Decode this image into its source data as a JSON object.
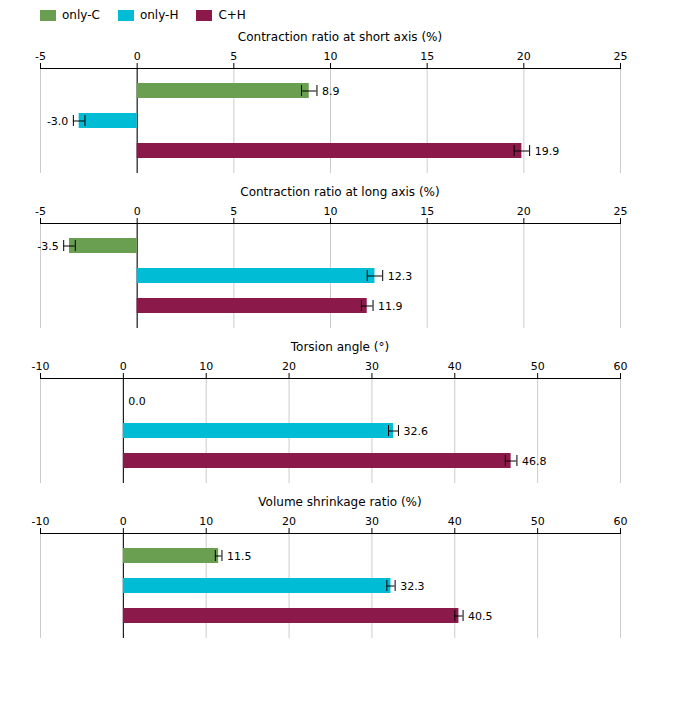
{
  "chart_data": [
    {
      "type": "bar",
      "orientation": "horizontal",
      "title": "Contraction ratio at short axis (%)",
      "categories": [
        "only-C",
        "only-H",
        "C+H"
      ],
      "values": [
        8.9,
        -3.0,
        19.9
      ],
      "value_labels": [
        "8.9",
        "-3.0",
        "19.9"
      ],
      "errors": [
        0.4,
        0.3,
        0.4
      ],
      "colors": [
        "#6a9e50",
        "#00bcd4",
        "#8b1a4a"
      ],
      "xlim": [
        -5,
        25
      ],
      "xticks": [
        -5,
        0,
        5,
        10,
        15,
        20,
        25
      ],
      "grid": true,
      "data_labels": true,
      "tick_labels": "x",
      "legend": "top"
    },
    {
      "type": "bar",
      "orientation": "horizontal",
      "title": "Contraction ratio at long axis (%)",
      "categories": [
        "only-C",
        "only-H",
        "C+H"
      ],
      "values": [
        -3.5,
        12.3,
        11.9
      ],
      "value_labels": [
        "-3.5",
        "12.3",
        "11.9"
      ],
      "errors": [
        0.3,
        0.4,
        0.3
      ],
      "colors": [
        "#6a9e50",
        "#00bcd4",
        "#8b1a4a"
      ],
      "xlim": [
        -5,
        25
      ],
      "xticks": [
        -5,
        0,
        5,
        10,
        15,
        20,
        25
      ],
      "grid": true,
      "data_labels": true,
      "tick_labels": "x"
    },
    {
      "type": "bar",
      "orientation": "horizontal",
      "title": "Torsion angle (°)",
      "categories": [
        "only-C",
        "only-H",
        "C+H"
      ],
      "values": [
        0.0,
        32.6,
        46.8
      ],
      "value_labels": [
        "0.0",
        "32.6",
        "46.8"
      ],
      "errors": [
        0.0,
        0.6,
        0.7
      ],
      "colors": [
        "#6a9e50",
        "#00bcd4",
        "#8b1a4a"
      ],
      "xlim": [
        -10,
        60
      ],
      "xticks": [
        -10,
        0,
        10,
        20,
        30,
        40,
        50,
        60
      ],
      "grid": true,
      "data_labels": true,
      "tick_labels": "x"
    },
    {
      "type": "bar",
      "orientation": "horizontal",
      "title": "Volume shrinkage ratio (%)",
      "categories": [
        "only-C",
        "only-H",
        "C+H"
      ],
      "values": [
        11.5,
        32.3,
        40.5
      ],
      "value_labels": [
        "11.5",
        "32.3",
        "40.5"
      ],
      "errors": [
        0.4,
        0.5,
        0.5
      ],
      "colors": [
        "#6a9e50",
        "#00bcd4",
        "#8b1a4a"
      ],
      "xlim": [
        -10,
        60
      ],
      "xticks": [
        -10,
        0,
        10,
        20,
        30,
        40,
        50,
        60
      ],
      "grid": true,
      "data_labels": true,
      "tick_labels": "x"
    }
  ]
}
